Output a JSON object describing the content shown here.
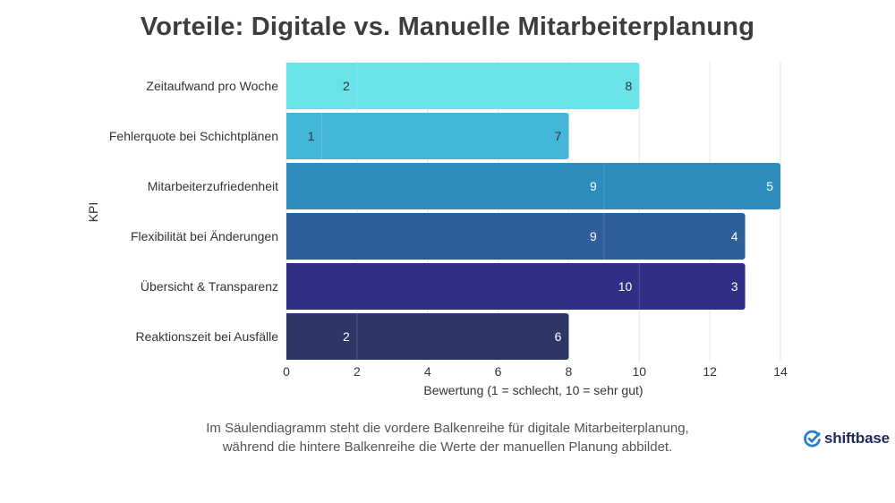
{
  "title": "Vorteile: Digitale vs. Manuelle Mitarbeiterplanung",
  "chart_data": {
    "type": "bar",
    "orientation": "horizontal",
    "stacked": true,
    "categories": [
      "Zeitaufwand pro Woche",
      "Fehlerquote bei Schichtplänen",
      "Mitarbeiterzufriedenheit",
      "Flexibilität bei Änderungen",
      "Übersicht & Transparenz",
      "Reaktionszeit bei Ausfälle"
    ],
    "series": [
      {
        "name": "Digitale Mitarbeiterplanung",
        "values": [
          2,
          1,
          9,
          9,
          10,
          2
        ]
      },
      {
        "name": "Manuelle Planung",
        "values": [
          8,
          7,
          5,
          4,
          3,
          6
        ]
      }
    ],
    "bar_colors": [
      "#6ae3e8",
      "#43b7d9",
      "#2d8dbf",
      "#2e5f9a",
      "#2f2f85",
      "#2c3768"
    ],
    "label_colors": [
      "#333333",
      "#333333",
      "#ffffff",
      "#ffffff",
      "#ffffff",
      "#ffffff"
    ],
    "xlabel": "Bewertung (1 = schlecht, 10 = sehr gut)",
    "ylabel": "KPI",
    "xlim": [
      0,
      14
    ],
    "xticks": [
      0,
      2,
      4,
      6,
      8,
      10,
      12,
      14
    ],
    "grid": true
  },
  "caption": {
    "line1": "Im Säulendiagramm steht die vordere Balkenreihe für digitale Mitarbeiterplanung,",
    "line2": "während die hintere Balkenreihe die Werte der manuellen Planung abbildet."
  },
  "brand": {
    "name": "shiftbase",
    "icon": "check-circle-icon",
    "color": "#2b7bd6"
  }
}
